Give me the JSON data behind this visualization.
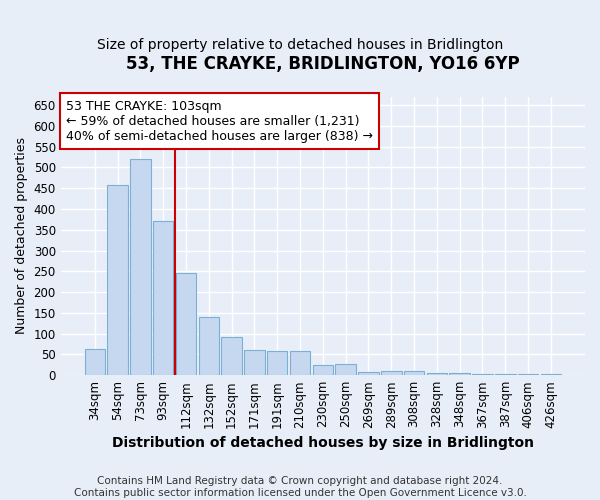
{
  "title": "53, THE CRAYKE, BRIDLINGTON, YO16 6YP",
  "subtitle": "Size of property relative to detached houses in Bridlington",
  "xlabel": "Distribution of detached houses by size in Bridlington",
  "ylabel": "Number of detached properties",
  "categories": [
    "34sqm",
    "54sqm",
    "73sqm",
    "93sqm",
    "112sqm",
    "132sqm",
    "152sqm",
    "171sqm",
    "191sqm",
    "210sqm",
    "230sqm",
    "250sqm",
    "269sqm",
    "289sqm",
    "308sqm",
    "328sqm",
    "348sqm",
    "367sqm",
    "387sqm",
    "406sqm",
    "426sqm"
  ],
  "values": [
    62,
    458,
    520,
    370,
    247,
    140,
    93,
    60,
    58,
    57,
    25,
    27,
    8,
    10,
    11,
    6,
    5,
    3,
    3,
    2,
    2
  ],
  "bar_color": "#c5d8f0",
  "bar_edge_color": "#7bafd4",
  "vline_x": 3.5,
  "vline_color": "#cc0000",
  "annotation_text": "53 THE CRAYKE: 103sqm\n← 59% of detached houses are smaller (1,231)\n40% of semi-detached houses are larger (838) →",
  "annotation_box_facecolor": "#ffffff",
  "annotation_box_edgecolor": "#cc0000",
  "ylim": [
    0,
    670
  ],
  "yticks": [
    0,
    50,
    100,
    150,
    200,
    250,
    300,
    350,
    400,
    450,
    500,
    550,
    600,
    650
  ],
  "footer": "Contains HM Land Registry data © Crown copyright and database right 2024.\nContains public sector information licensed under the Open Government Licence v3.0.",
  "bg_color": "#e8eef8",
  "plot_bg_color": "#e8eef8",
  "grid_color": "#ffffff",
  "title_fontsize": 12,
  "subtitle_fontsize": 10,
  "xlabel_fontsize": 10,
  "ylabel_fontsize": 9,
  "tick_fontsize": 8.5,
  "annotation_fontsize": 9,
  "footer_fontsize": 7.5
}
